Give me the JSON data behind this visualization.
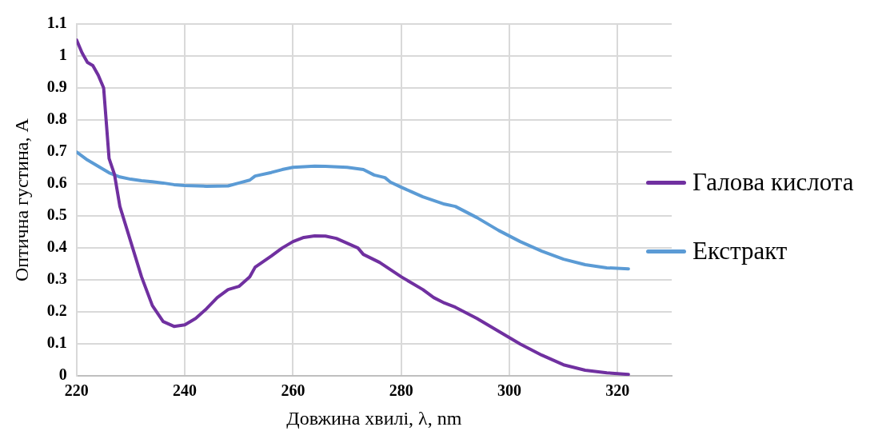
{
  "chart_data": {
    "type": "line",
    "xlabel": "Довжина хвилі, λ, nm",
    "ylabel": "Оптична густина, А",
    "xlim": [
      220,
      330
    ],
    "xticks": [
      220,
      240,
      260,
      280,
      300,
      320
    ],
    "ylim": [
      0,
      1.1
    ],
    "yticks": [
      0,
      0.1,
      0.2,
      0.3,
      0.4,
      0.5,
      0.6,
      0.7,
      0.8,
      0.9,
      1,
      1.1
    ],
    "grid": true,
    "legend": "right",
    "marker": "none",
    "line_style": "solid",
    "series": [
      {
        "name": "Галова кислота",
        "color": "#7030a0",
        "x": [
          220,
          221,
          222,
          223,
          224,
          225,
          226,
          227,
          228,
          230,
          232,
          234,
          236,
          238,
          240,
          242,
          244,
          246,
          248,
          250,
          252,
          253,
          256,
          258,
          260,
          262,
          264,
          266,
          268,
          270,
          272,
          273,
          276,
          280,
          284,
          286,
          288,
          290,
          294,
          298,
          302,
          306,
          310,
          314,
          318,
          322
        ],
        "values": [
          1.05,
          1.01,
          0.98,
          0.97,
          0.94,
          0.9,
          0.68,
          0.63,
          0.53,
          0.42,
          0.31,
          0.22,
          0.17,
          0.155,
          0.16,
          0.18,
          0.21,
          0.245,
          0.27,
          0.28,
          0.31,
          0.34,
          0.375,
          0.4,
          0.42,
          0.433,
          0.438,
          0.437,
          0.43,
          0.415,
          0.4,
          0.38,
          0.355,
          0.31,
          0.27,
          0.245,
          0.228,
          0.215,
          0.18,
          0.14,
          0.1,
          0.065,
          0.035,
          0.018,
          0.01,
          0.005
        ]
      },
      {
        "name": "Екстракт",
        "color": "#5b9bd5",
        "x": [
          220,
          222,
          224,
          226,
          228,
          230,
          232,
          234,
          236,
          238,
          240,
          244,
          248,
          250,
          252,
          253,
          256,
          258,
          260,
          264,
          266,
          270,
          273,
          275,
          277,
          278,
          280,
          282,
          284,
          288,
          290,
          294,
          298,
          302,
          306,
          310,
          314,
          318,
          322
        ],
        "values": [
          0.7,
          0.675,
          0.655,
          0.635,
          0.622,
          0.615,
          0.61,
          0.607,
          0.603,
          0.598,
          0.595,
          0.593,
          0.594,
          0.603,
          0.612,
          0.625,
          0.636,
          0.645,
          0.652,
          0.656,
          0.655,
          0.652,
          0.645,
          0.628,
          0.62,
          0.606,
          0.59,
          0.575,
          0.56,
          0.537,
          0.53,
          0.495,
          0.455,
          0.42,
          0.39,
          0.365,
          0.348,
          0.338,
          0.335
        ]
      }
    ]
  }
}
